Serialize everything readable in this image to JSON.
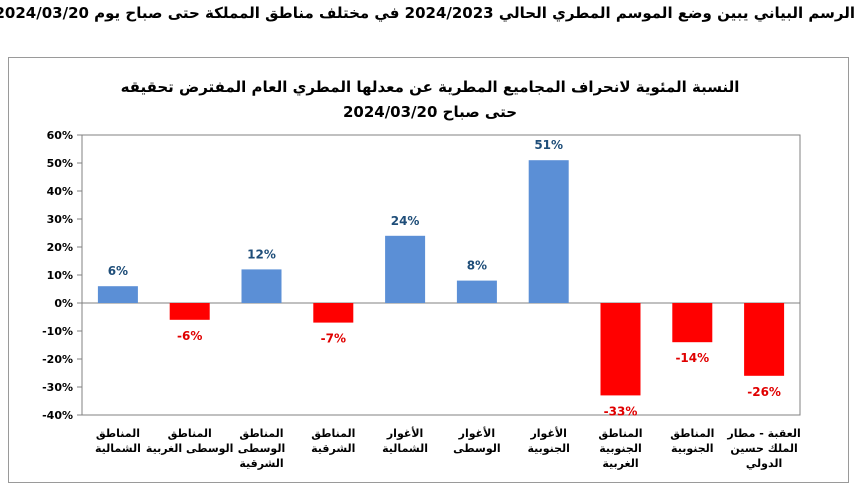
{
  "heading": "الرسم البياني يبين وضع الموسم المطري الحالي 2024/2023 في مختلف مناطق المملكة حتى صباح يوم 2024/03/20.",
  "chart_data": {
    "type": "bar",
    "title": "النسبة المئوية لانحراف المجاميع المطرية عن معدلها المطري العام المفترض تحقيقه",
    "subtitle": "حتى صباح 2024/03/20",
    "xlabel": "",
    "ylabel": "",
    "ylim": [
      -40,
      60
    ],
    "yticks": [
      -40,
      -30,
      -20,
      -10,
      0,
      10,
      20,
      30,
      40,
      50,
      60
    ],
    "ytick_labels": [
      "-40%",
      "-30%",
      "-20%",
      "-10%",
      "0%",
      "10%",
      "20%",
      "30%",
      "40%",
      "50%",
      "60%"
    ],
    "grid": false,
    "categories": [
      [
        "المناطق",
        "الشمالية"
      ],
      [
        "المناطق",
        "الوسطى الغربية"
      ],
      [
        "المناطق",
        "الوسطى",
        "الشرقية"
      ],
      [
        "المناطق",
        "الشرقية"
      ],
      [
        "الأغوار",
        "الشمالية"
      ],
      [
        "الأغوار",
        "الوسطى"
      ],
      [
        "الأغوار",
        "الجنوبية"
      ],
      [
        "المناطق",
        "الجنوبية",
        "الغربية"
      ],
      [
        "المناطق",
        "الجنوبية"
      ],
      [
        "العقبة - مطار",
        "الملك حسين",
        "الدولي"
      ]
    ],
    "values": [
      6,
      -6,
      12,
      -7,
      24,
      8,
      51,
      -33,
      -14,
      -26
    ],
    "value_labels": [
      "6%",
      "-6%",
      "12%",
      "-7%",
      "24%",
      "8%",
      "51%",
      "-33%",
      "-14%",
      "-26%"
    ],
    "colors": {
      "positive": "#5b8fd6",
      "negative": "#ff0000",
      "positive_label": "#1f4e79",
      "negative_label": "#e00000"
    }
  }
}
